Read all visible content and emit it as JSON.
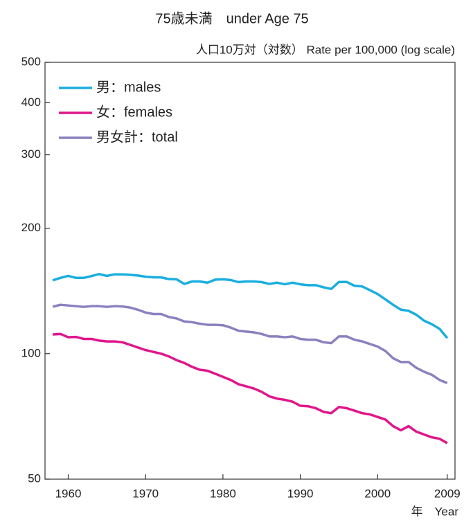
{
  "chart_data": {
    "type": "line",
    "title": "75歳未満　under Age 75",
    "y_label": "人口10万対（対数） Rate per 100,000 (log scale)",
    "x_label": "年　Year",
    "log_scale": true,
    "legend": "top-left",
    "xlim": [
      1957,
      2010
    ],
    "xticks": [
      1960,
      1970,
      1980,
      1990,
      2000,
      2009
    ],
    "ylim": [
      50,
      500
    ],
    "yticks": [
      50,
      100,
      200,
      300,
      400,
      500
    ],
    "x": [
      1958,
      1959,
      1960,
      1961,
      1962,
      1963,
      1964,
      1965,
      1966,
      1967,
      1968,
      1969,
      1970,
      1971,
      1972,
      1973,
      1974,
      1975,
      1976,
      1977,
      1978,
      1979,
      1980,
      1981,
      1982,
      1983,
      1984,
      1985,
      1986,
      1987,
      1988,
      1989,
      1990,
      1991,
      1992,
      1993,
      1994,
      1995,
      1996,
      1997,
      1998,
      1999,
      2000,
      2001,
      2002,
      2003,
      2004,
      2005,
      2006,
      2007,
      2008,
      2009
    ],
    "series": [
      {
        "name": "男：males",
        "color": "#1aaee0",
        "values": [
          150,
          152,
          153.7,
          152,
          152,
          153.5,
          155.2,
          153.7,
          155,
          155,
          154.6,
          154,
          153,
          152.5,
          152.4,
          151,
          150.8,
          147,
          149,
          149,
          148,
          150.5,
          150.8,
          150.2,
          148.5,
          149,
          149,
          148.5,
          147,
          148,
          146.7,
          148,
          146.7,
          146,
          146,
          144.3,
          143,
          148.6,
          148.6,
          145.5,
          145,
          142,
          139,
          135,
          131,
          127.5,
          126.7,
          124,
          120,
          117.7,
          114.7,
          109
        ]
      },
      {
        "name": "女：females",
        "color": "#e0168a",
        "values": [
          111.2,
          111.5,
          109.5,
          109.7,
          108.5,
          108.5,
          107.5,
          107,
          107,
          106.5,
          105,
          103.5,
          102,
          101,
          100,
          98.5,
          96.5,
          95,
          93,
          91.5,
          91,
          89.5,
          88,
          86.5,
          84.5,
          83.5,
          82.5,
          81,
          79,
          78,
          77.5,
          76.7,
          75,
          74.8,
          74,
          72.5,
          72,
          74.5,
          74,
          73,
          72,
          71.5,
          70.5,
          69.5,
          67,
          65.5,
          67,
          65,
          64,
          63,
          62.5,
          61
        ]
      },
      {
        "name": "男女計：total",
        "color": "#8c80bf",
        "values": [
          129.6,
          131,
          130.5,
          130,
          129.5,
          130,
          130,
          129.5,
          130,
          129.8,
          129,
          127.5,
          125.5,
          124.5,
          124.5,
          122.5,
          121.5,
          119.5,
          119,
          118,
          117.3,
          117.3,
          117,
          115.5,
          113.5,
          113,
          112.5,
          111.5,
          110,
          110,
          109.5,
          110,
          108.5,
          108,
          108,
          106.5,
          106,
          110,
          110,
          108,
          107,
          105.5,
          104,
          101.5,
          97.5,
          95.5,
          95.5,
          92.5,
          90.5,
          89,
          86.5,
          85
        ]
      }
    ]
  }
}
